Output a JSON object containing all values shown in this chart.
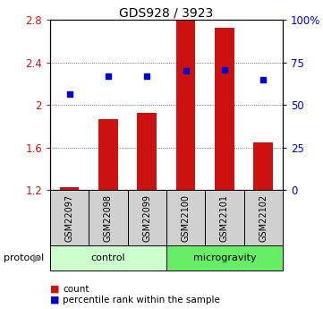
{
  "title": "GDS928 / 3923",
  "samples": [
    "GSM22097",
    "GSM22098",
    "GSM22099",
    "GSM22100",
    "GSM22101",
    "GSM22102"
  ],
  "bar_values": [
    1.23,
    1.87,
    1.93,
    2.8,
    2.73,
    1.65
  ],
  "dot_values": [
    2.1,
    2.27,
    2.27,
    2.32,
    2.33,
    2.24
  ],
  "bar_color": "#cc1111",
  "dot_color": "#0000cc",
  "ylim_left": [
    1.2,
    2.8
  ],
  "ylim_right": [
    0,
    100
  ],
  "yticks_left": [
    1.2,
    1.6,
    2.0,
    2.4,
    2.8
  ],
  "ytick_labels_left": [
    "1.2",
    "1.6",
    "2",
    "2.4",
    "2.8"
  ],
  "yticks_right": [
    0,
    25,
    50,
    75,
    100
  ],
  "ytick_labels_right": [
    "0",
    "25",
    "50",
    "75",
    "100%"
  ],
  "groups": [
    {
      "label": "control",
      "color": "#ccffcc"
    },
    {
      "label": "microgravity",
      "color": "#66ee66"
    }
  ],
  "protocol_label": "protocol",
  "legend_count": "count",
  "legend_percentile": "percentile rank within the sample",
  "bar_width": 0.5,
  "dot_color_marker": "s",
  "dot_markersize": 5
}
